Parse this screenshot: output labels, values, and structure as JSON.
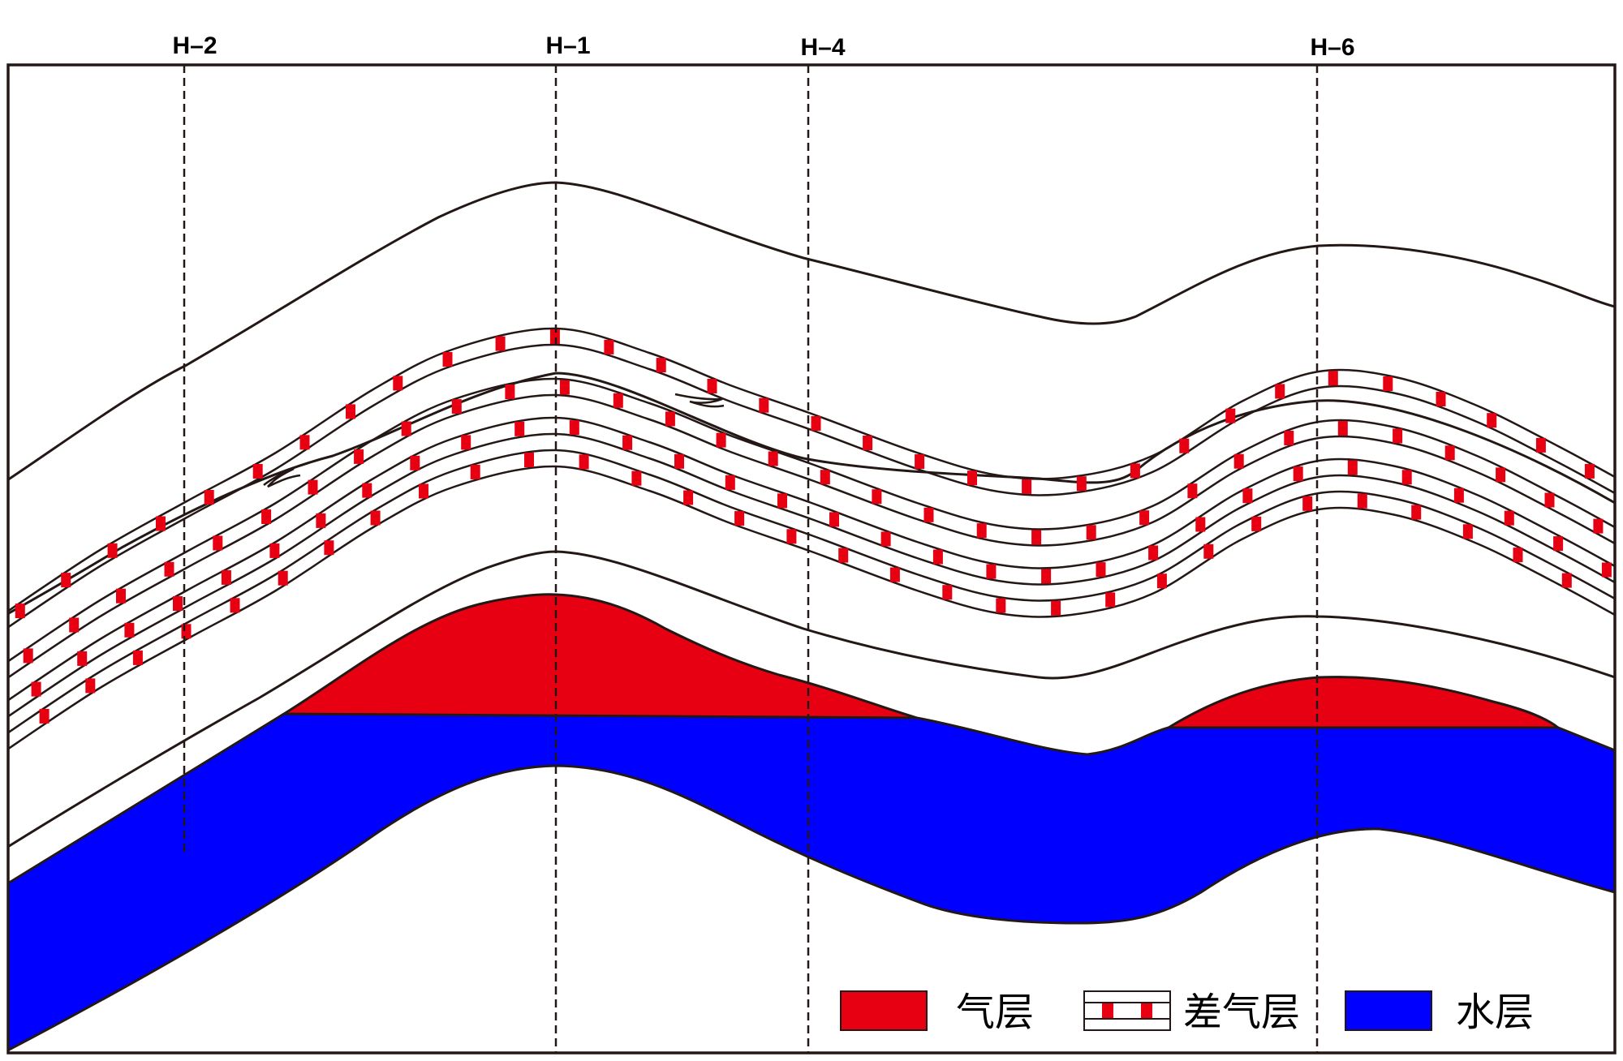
{
  "wells": [
    {
      "id": "H-2",
      "label": "H–2"
    },
    {
      "id": "H-1",
      "label": "H–1"
    },
    {
      "id": "H-4",
      "label": "H–4"
    },
    {
      "id": "H-6",
      "label": "H–6"
    }
  ],
  "legend": {
    "gas": {
      "label": "气层",
      "color": "#e60012"
    },
    "poor_gas": {
      "label": "差气层",
      "color": "#e60012"
    },
    "water": {
      "label": "水层",
      "color": "#0000ff"
    }
  }
}
